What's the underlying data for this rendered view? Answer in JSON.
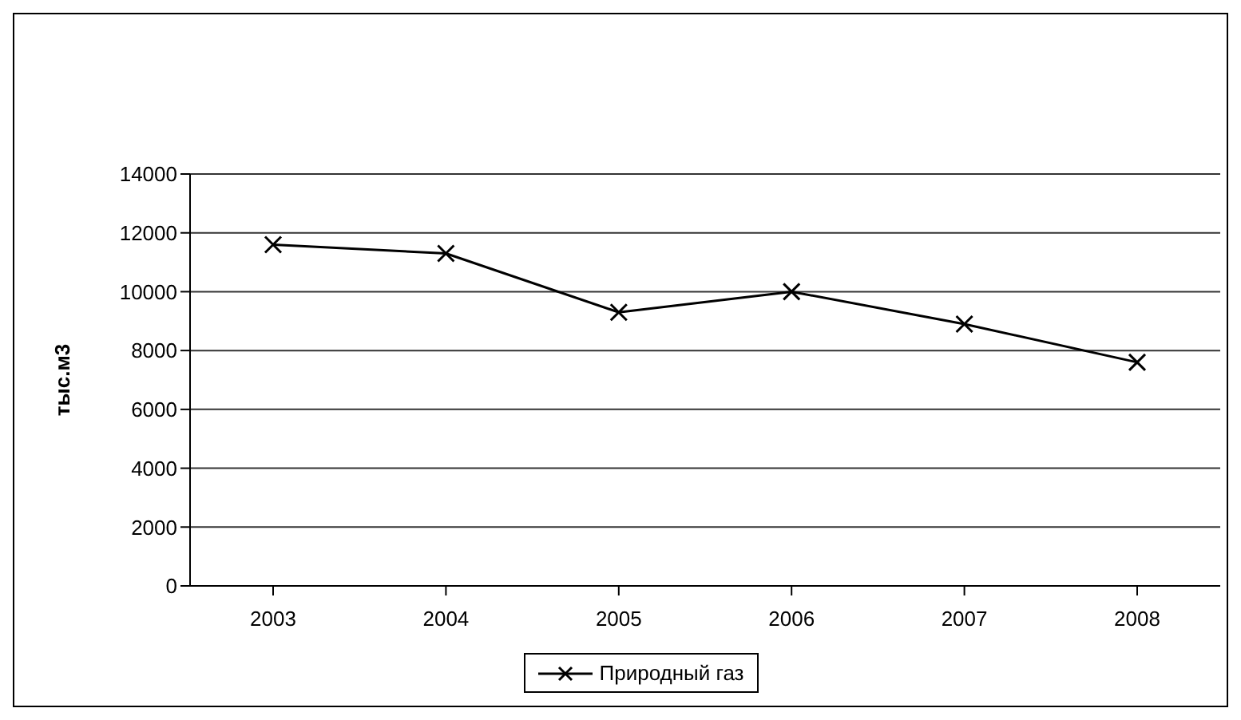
{
  "chart_data": {
    "type": "line",
    "ylabel": "тыс.м3",
    "categories": [
      "2003",
      "2004",
      "2005",
      "2006",
      "2007",
      "2008"
    ],
    "series": [
      {
        "name": "Природный газ",
        "color": "#000000",
        "values": [
          11600,
          11300,
          9300,
          10000,
          8900,
          7600
        ]
      }
    ],
    "ylim": [
      0,
      14000
    ],
    "yticks": [
      0,
      2000,
      4000,
      6000,
      8000,
      10000,
      12000,
      14000
    ],
    "grid": "y",
    "legend": "bottom",
    "marker": "cross",
    "line_style": "solid"
  }
}
